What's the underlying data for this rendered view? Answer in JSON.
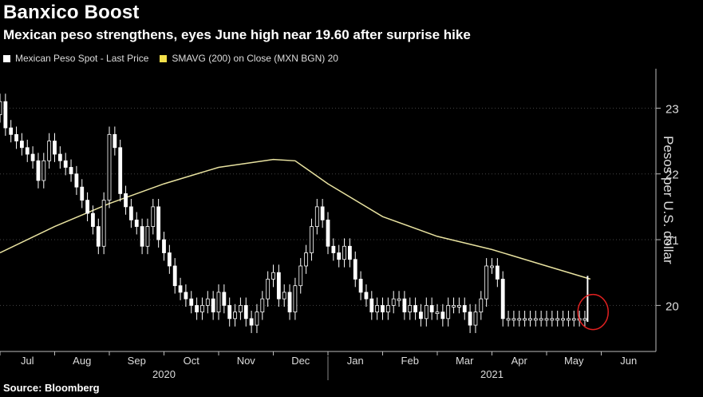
{
  "title": "Banxico Boost",
  "subtitle": "Mexican peso strengthens, eyes June high near 19.60 after surprise hike",
  "legend": {
    "series1": "Mexican Peso Spot - Last Price",
    "series2": "SMAVG (200)  on Close (MXN BGN) 20"
  },
  "source": "Source: Bloomberg",
  "colors": {
    "price": "#ffffff",
    "sma": "#e8e2a0",
    "circle": "#e02020",
    "axis": "#bbbbbb"
  },
  "chart_data": {
    "type": "line",
    "ylabel": "Pesos per U.S. dollar",
    "ylim": [
      19.3,
      23.6
    ],
    "yticks": [
      20,
      21,
      22,
      23
    ],
    "months": [
      "Jul",
      "Aug",
      "Sep",
      "Oct",
      "Nov",
      "Dec",
      "Jan",
      "Feb",
      "Mar",
      "Apr",
      "May",
      "Jun"
    ],
    "years": [
      "2020",
      "2021"
    ],
    "series": [
      {
        "name": "Mexican Peso Spot - Last Price",
        "x": [
          0.0,
          0.1,
          0.2,
          0.3,
          0.4,
          0.5,
          0.6,
          0.7,
          0.8,
          0.9,
          1.0,
          1.1,
          1.2,
          1.3,
          1.4,
          1.5,
          1.6,
          1.7,
          1.8,
          1.9,
          2.0,
          2.1,
          2.2,
          2.3,
          2.4,
          2.5,
          2.6,
          2.7,
          2.8,
          2.9,
          3.0,
          3.1,
          3.2,
          3.3,
          3.4,
          3.5,
          3.6,
          3.7,
          3.8,
          3.9,
          4.0,
          4.1,
          4.2,
          4.3,
          4.4,
          4.5,
          4.6,
          4.7,
          4.8,
          4.9,
          5.0,
          5.1,
          5.2,
          5.3,
          5.4,
          5.5,
          5.6,
          5.7,
          5.8,
          5.9,
          6.0,
          6.1,
          6.2,
          6.3,
          6.4,
          6.5,
          6.6,
          6.7,
          6.8,
          6.9,
          7.0,
          7.1,
          7.2,
          7.3,
          7.4,
          7.5,
          7.6,
          7.7,
          7.8,
          7.9,
          8.0,
          8.1,
          8.2,
          8.3,
          8.4,
          8.5,
          8.6,
          8.7,
          8.8,
          8.9,
          9.0,
          9.1,
          9.2,
          9.3,
          9.4,
          9.5,
          9.6,
          9.7,
          9.8,
          9.9,
          10.0,
          10.1,
          10.2,
          10.3,
          10.4,
          10.5,
          10.6,
          10.7,
          10.8,
          10.9,
          11.0,
          11.1,
          11.2,
          11.3,
          11.4,
          11.5,
          11.6,
          11.7,
          11.8
        ],
        "values": [
          22.9,
          23.1,
          22.7,
          22.6,
          22.5,
          22.4,
          22.3,
          22.2,
          21.9,
          22.2,
          22.5,
          22.3,
          22.2,
          22.1,
          22.0,
          21.8,
          21.6,
          21.4,
          21.2,
          20.9,
          21.6,
          22.6,
          22.4,
          21.7,
          21.5,
          21.3,
          21.2,
          20.9,
          21.2,
          21.5,
          21.0,
          20.8,
          20.6,
          20.3,
          20.2,
          20.1,
          20.0,
          19.9,
          20.0,
          20.1,
          19.9,
          20.2,
          20.0,
          19.8,
          19.9,
          20.0,
          19.8,
          19.7,
          19.9,
          20.1,
          20.4,
          20.5,
          20.1,
          20.2,
          19.9,
          20.3,
          20.6,
          20.8,
          21.2,
          21.5,
          21.3,
          20.9,
          20.8,
          20.7,
          20.9,
          20.7,
          20.4,
          20.2,
          20.1,
          19.9,
          20.0,
          19.9,
          20.0,
          20.1,
          20.1,
          19.9,
          20.0,
          19.9,
          19.8,
          20.0,
          19.9,
          19.9,
          19.8,
          20.0,
          20.0,
          20.0,
          19.9,
          19.7,
          19.9,
          20.1,
          20.6,
          20.6,
          20.4,
          19.8,
          19.8,
          19.8,
          19.8,
          19.8,
          19.8,
          19.8,
          19.8,
          19.8,
          19.8,
          19.8,
          19.8,
          19.8,
          19.8,
          19.8,
          19.8,
          19.8,
          19.8,
          19.8,
          19.8,
          19.8,
          19.8,
          19.8,
          19.8,
          19.8,
          19.8
        ]
      },
      {
        "name": "SMAVG (200)  on Close (MXN BGN) 20",
        "x": [
          0.0,
          1.0,
          2.0,
          3.0,
          4.0,
          5.0,
          5.4,
          6.0,
          7.0,
          8.0,
          9.0,
          10.0,
          10.8
        ],
        "values": [
          20.8,
          21.2,
          21.55,
          21.85,
          22.1,
          22.22,
          22.2,
          21.85,
          21.35,
          21.05,
          20.85,
          20.6,
          20.4
        ]
      }
    ]
  }
}
